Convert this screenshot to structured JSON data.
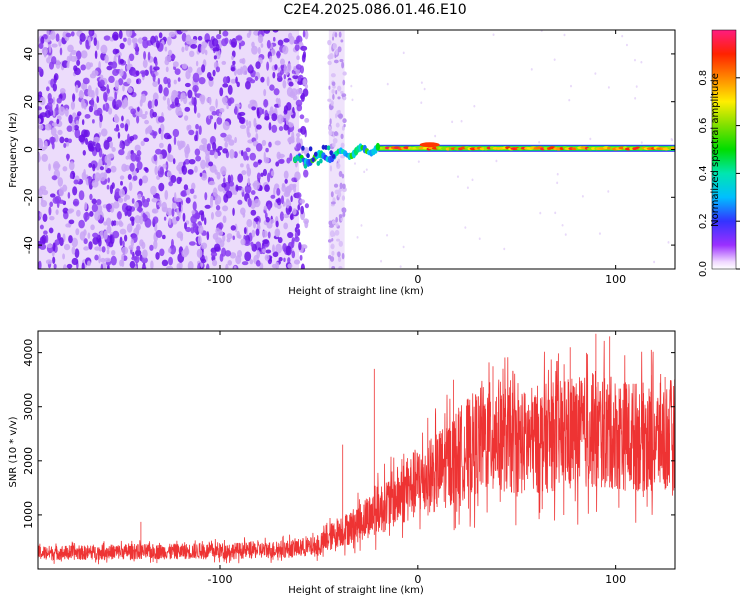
{
  "figure_title": "C2E4.2025.086.01.46.E10",
  "chart_data": [
    {
      "type": "heatmap",
      "xlabel": "Height of straight line (km)",
      "ylabel": "Frequency (Hz)",
      "xlim": [
        -192,
        130
      ],
      "ylim": [
        -50,
        50
      ],
      "xticks": [
        -100,
        0,
        100
      ],
      "xtick_labels": [
        "-100",
        "0",
        "100"
      ],
      "yticks": [
        -40,
        -20,
        0,
        20,
        40
      ],
      "ytick_labels": [
        "-40",
        "-20",
        "0",
        "20",
        "40"
      ],
      "colorbar": {
        "label": "Normalized spectral amplitude",
        "range": [
          0,
          1
        ],
        "ticks": [
          0.0,
          0.2,
          0.4,
          0.6,
          0.8
        ],
        "tick_labels": [
          "0.0",
          "0.2",
          "0.4",
          "0.6",
          "0.8"
        ],
        "colormap": "rainbow (white-purple-blue-cyan-green-yellow-red-magenta)"
      },
      "features": {
        "noise_region_x": [
          -192,
          -60
        ],
        "noise_gap_x": [
          -48,
          -42
        ],
        "noise_strip_x": [
          -45,
          -37
        ],
        "signal_line_x": [
          -62,
          130
        ],
        "signal_frequency_hz": 0.5,
        "signal_level": 0.85
      },
      "grid": false
    },
    {
      "type": "line",
      "xlabel": "Height of straight line (km)",
      "ylabel": "SNR (10 * v/v)",
      "xlim": [
        -192,
        130
      ],
      "ylim": [
        0,
        4400
      ],
      "xticks": [
        -100,
        0,
        100
      ],
      "xtick_labels": [
        "-100",
        "0",
        "100"
      ],
      "yticks": [
        1000,
        2000,
        3000,
        4000
      ],
      "ytick_labels": [
        "1000",
        "2000",
        "3000",
        "4000"
      ],
      "color": "#ee3333",
      "grid": false,
      "series": [
        {
          "x": [
            -190,
            -170,
            -150,
            -130,
            -110,
            -90,
            -70,
            -50,
            -40,
            -35,
            -30,
            -20,
            -10,
            0,
            10,
            20,
            30,
            40,
            50,
            60,
            70,
            80,
            90,
            100,
            110,
            120,
            130
          ],
          "y": [
            300,
            300,
            320,
            320,
            330,
            340,
            360,
            420,
            700,
            750,
            850,
            1100,
            1350,
            1600,
            1800,
            2100,
            2350,
            2500,
            2300,
            2400,
            2450,
            2500,
            2550,
            2500,
            2450,
            2400,
            2500
          ],
          "spikes": [
            {
              "x": -140,
              "y": 870
            },
            {
              "x": -38,
              "y": 2300
            },
            {
              "x": -22,
              "y": 3700
            },
            {
              "x": 18,
              "y": 3500
            },
            {
              "x": 38,
              "y": 3750
            },
            {
              "x": 77,
              "y": 4100
            },
            {
              "x": 90,
              "y": 4350
            },
            {
              "x": 97,
              "y": 4300
            },
            {
              "x": 118,
              "y": 4050
            },
            {
              "x": 125,
              "y": 3550
            }
          ]
        }
      ]
    }
  ]
}
